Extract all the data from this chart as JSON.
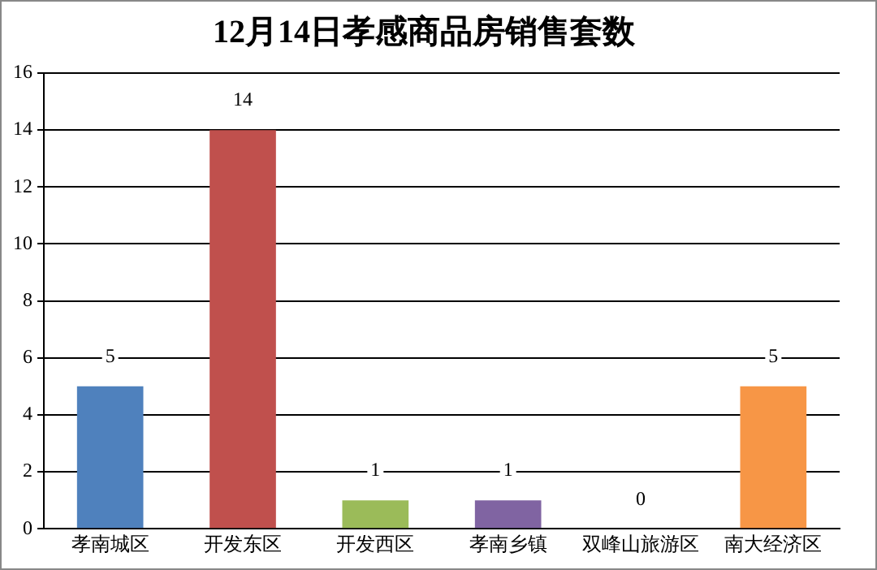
{
  "chart_data": {
    "type": "bar",
    "title": "12月14日孝感商品房销售套数",
    "categories": [
      "孝南城区",
      "开发东区",
      "开发西区",
      "孝南乡镇",
      "双峰山旅游区",
      "南大经济区"
    ],
    "values": [
      5,
      14,
      1,
      1,
      0,
      5
    ],
    "colors": [
      "#4f81bd",
      "#c0504d",
      "#9bbb59",
      "#8064a2",
      "#4bacc6",
      "#f79646"
    ],
    "ylim": [
      0,
      16
    ],
    "yticks": [
      0,
      2,
      4,
      6,
      8,
      10,
      12,
      14,
      16
    ],
    "grid": "y",
    "legend": false,
    "data_labels": true
  }
}
